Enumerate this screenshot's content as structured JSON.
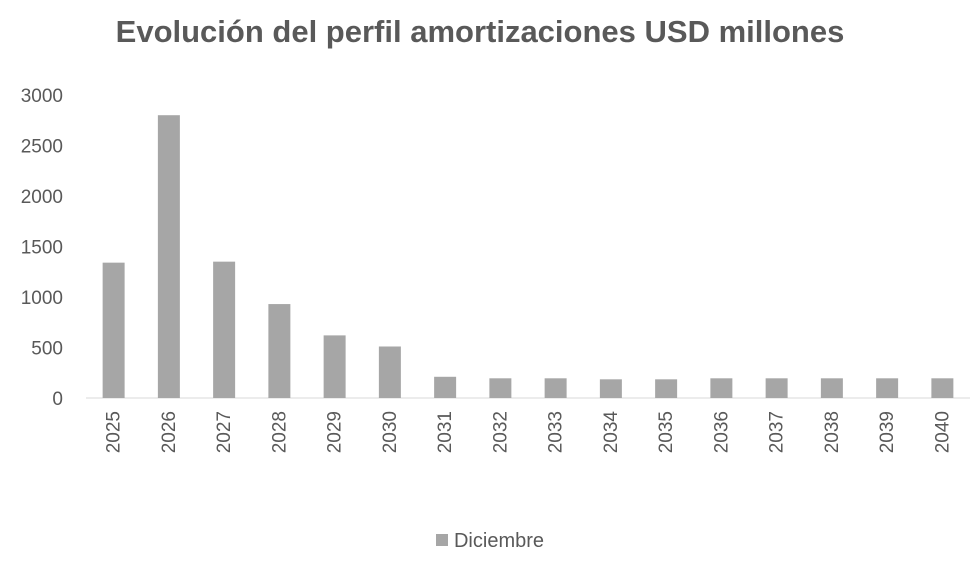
{
  "chart_data": {
    "type": "bar",
    "title": "Evolución del perfil amortizaciones USD millones",
    "categories": [
      "2025",
      "2026",
      "2027",
      "2028",
      "2029",
      "2030",
      "2031",
      "2032",
      "2033",
      "2034",
      "2035",
      "2036",
      "2037",
      "2038",
      "2039",
      "2040"
    ],
    "series": [
      {
        "name": "Diciembre",
        "values": [
          1340,
          2800,
          1350,
          930,
          620,
          510,
          210,
          195,
          195,
          185,
          185,
          195,
          195,
          195,
          195,
          195
        ],
        "color": "#a6a6a6"
      }
    ],
    "y_ticks": [
      "0",
      "500",
      "1000",
      "1500",
      "2000",
      "2500",
      "3000"
    ],
    "ylim": [
      0,
      3000
    ],
    "xlabel": "",
    "ylabel": "",
    "grid": false,
    "legend_position": "bottom"
  }
}
